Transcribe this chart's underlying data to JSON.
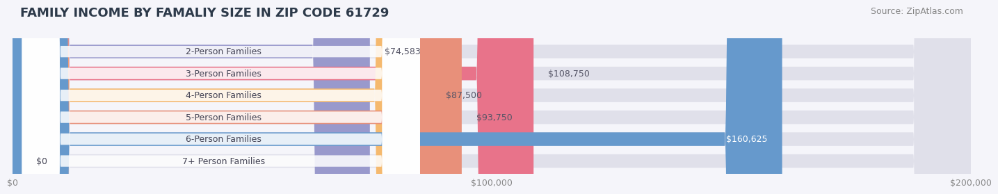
{
  "title": "FAMILY INCOME BY FAMALIY SIZE IN ZIP CODE 61729",
  "source": "Source: ZipAtlas.com",
  "categories": [
    "2-Person Families",
    "3-Person Families",
    "4-Person Families",
    "5-Person Families",
    "6-Person Families",
    "7+ Person Families"
  ],
  "values": [
    74583,
    108750,
    87500,
    93750,
    160625,
    0
  ],
  "bar_colors": [
    "#9999cc",
    "#e8738a",
    "#f5b96e",
    "#e8907a",
    "#6699cc",
    "#c4aed0"
  ],
  "label_colors": [
    "#555566",
    "#555566",
    "#555566",
    "#555566",
    "#ffffff",
    "#555566"
  ],
  "value_labels": [
    "$74,583",
    "$108,750",
    "$87,500",
    "$93,750",
    "$160,625",
    "$0"
  ],
  "xlim": [
    0,
    200000
  ],
  "xticks": [
    0,
    100000,
    200000
  ],
  "xtick_labels": [
    "$0",
    "$100,000",
    "$200,000"
  ],
  "background_color": "#f0f0f5",
  "bar_bg_color": "#e8e8f0",
  "title_color": "#2d3a4a",
  "title_fontsize": 13,
  "source_fontsize": 9,
  "label_fontsize": 9,
  "value_fontsize": 9,
  "tick_fontsize": 9
}
